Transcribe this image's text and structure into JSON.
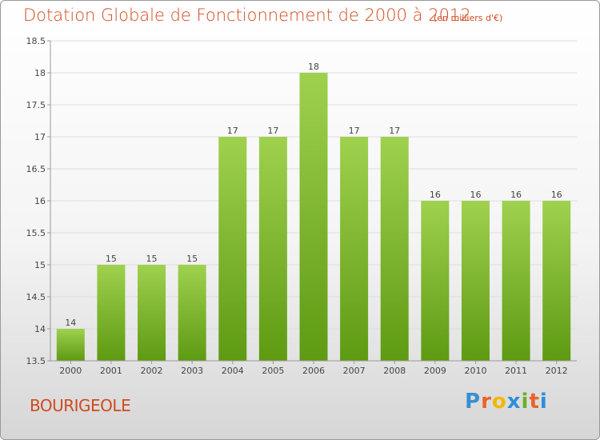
{
  "title": "Dotation Globale de Fonctionnement de 2000 à 2012",
  "subtitle": "(en milliers d'€)",
  "commune": "BOURIGEOLE",
  "logo_text": "Proxiti",
  "colors": {
    "title": "#d04a20",
    "bar_top": "#9fd14f",
    "bar_bottom": "#5e9a12",
    "grid": "#dddddd",
    "axis": "#999999"
  },
  "chart_data": {
    "type": "bar",
    "title": "Dotation Globale de Fonctionnement de 2000 à 2012",
    "unit": "(en milliers d'€)",
    "xlabel": "",
    "ylabel": "",
    "categories": [
      "2000",
      "2001",
      "2002",
      "2003",
      "2004",
      "2005",
      "2006",
      "2007",
      "2008",
      "2009",
      "2010",
      "2011",
      "2012"
    ],
    "values": [
      14,
      15,
      15,
      15,
      17,
      17,
      18,
      17,
      17,
      16,
      16,
      16,
      16
    ],
    "ylim": [
      13.5,
      18.5
    ],
    "yticks": [
      "13.5",
      "14",
      "14.5",
      "15",
      "15.5",
      "16",
      "16.5",
      "17",
      "17.5",
      "18",
      "18.5"
    ],
    "grid": true
  }
}
